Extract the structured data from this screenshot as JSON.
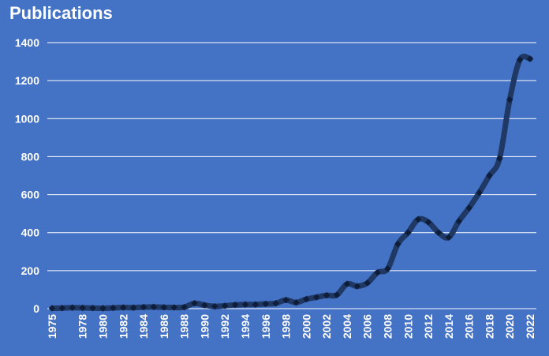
{
  "chart_data": {
    "type": "line",
    "title": "Publications",
    "xlabel": "",
    "ylabel": "",
    "ylim": [
      0,
      1400
    ],
    "yticks": [
      0,
      200,
      400,
      600,
      800,
      1000,
      1200,
      1400
    ],
    "x": [
      1975,
      1976,
      1977,
      1978,
      1979,
      1980,
      1981,
      1982,
      1983,
      1984,
      1985,
      1986,
      1987,
      1988,
      1989,
      1990,
      1991,
      1992,
      1993,
      1994,
      1995,
      1996,
      1997,
      1998,
      1999,
      2000,
      2001,
      2002,
      2003,
      2004,
      2005,
      2006,
      2007,
      2008,
      2009,
      2010,
      2011,
      2012,
      2013,
      2014,
      2015,
      2016,
      2017,
      2018,
      2019,
      2020,
      2021,
      2022
    ],
    "x_tick_labels": [
      1975,
      1978,
      1980,
      1982,
      1984,
      1986,
      1988,
      1990,
      1992,
      1994,
      1996,
      1998,
      2000,
      2002,
      2004,
      2006,
      2008,
      2010,
      2012,
      2014,
      2016,
      2018,
      2020,
      2022
    ],
    "series": [
      {
        "values": [
          2,
          3,
          5,
          4,
          3,
          2,
          4,
          6,
          5,
          8,
          9,
          7,
          6,
          8,
          28,
          18,
          12,
          15,
          20,
          22,
          22,
          25,
          28,
          45,
          32,
          50,
          60,
          70,
          72,
          130,
          118,
          135,
          190,
          210,
          340,
          400,
          470,
          455,
          400,
          375,
          460,
          530,
          610,
          700,
          790,
          1100,
          1310,
          1315
        ]
      }
    ],
    "grid": true,
    "legend": "none",
    "colors": {
      "background": "#4472C4",
      "line": "#1F3864",
      "marker": "#0E1E3A",
      "grid": "#FFFFFF",
      "text": "#FFFFFF"
    }
  }
}
